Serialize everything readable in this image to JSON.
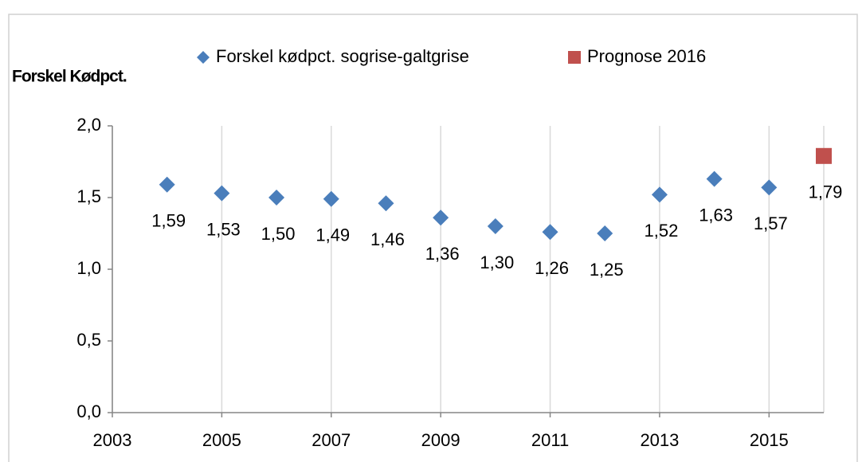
{
  "chart_data": {
    "type": "scatter",
    "y_axis_label": "Forskel Kødpct.",
    "series": [
      {
        "name": "Forskel kødpct. sogrise-galtgrise",
        "color": "#4a7ebb",
        "marker": "diamond",
        "x": [
          2004,
          2005,
          2006,
          2007,
          2008,
          2009,
          2010,
          2011,
          2012,
          2013,
          2014,
          2015
        ],
        "values": [
          1.59,
          1.53,
          1.5,
          1.49,
          1.46,
          1.36,
          1.3,
          1.26,
          1.25,
          1.52,
          1.63,
          1.57
        ],
        "value_labels": [
          "1,59",
          "1,53",
          "1,50",
          "1,49",
          "1,46",
          "1,36",
          "1,30",
          "1,26",
          "1,25",
          "1,52",
          "1,63",
          "1,57"
        ]
      },
      {
        "name": "Prognose 2016",
        "color": "#c0504d",
        "marker": "square",
        "x": [
          2016
        ],
        "values": [
          1.79
        ],
        "value_labels": [
          "1,79"
        ]
      }
    ],
    "xlim": [
      2003,
      2016
    ],
    "xticks": [
      2003,
      2005,
      2007,
      2009,
      2011,
      2013,
      2015
    ],
    "ylim": [
      0,
      2
    ],
    "yticks": [
      {
        "value": 0,
        "label": "0,0"
      },
      {
        "value": 0.5,
        "label": "0,5"
      },
      {
        "value": 1,
        "label": "1,0"
      },
      {
        "value": 1.5,
        "label": "1,5"
      },
      {
        "value": 2,
        "label": "2,0"
      }
    ],
    "grid": "x",
    "legend": "top"
  }
}
